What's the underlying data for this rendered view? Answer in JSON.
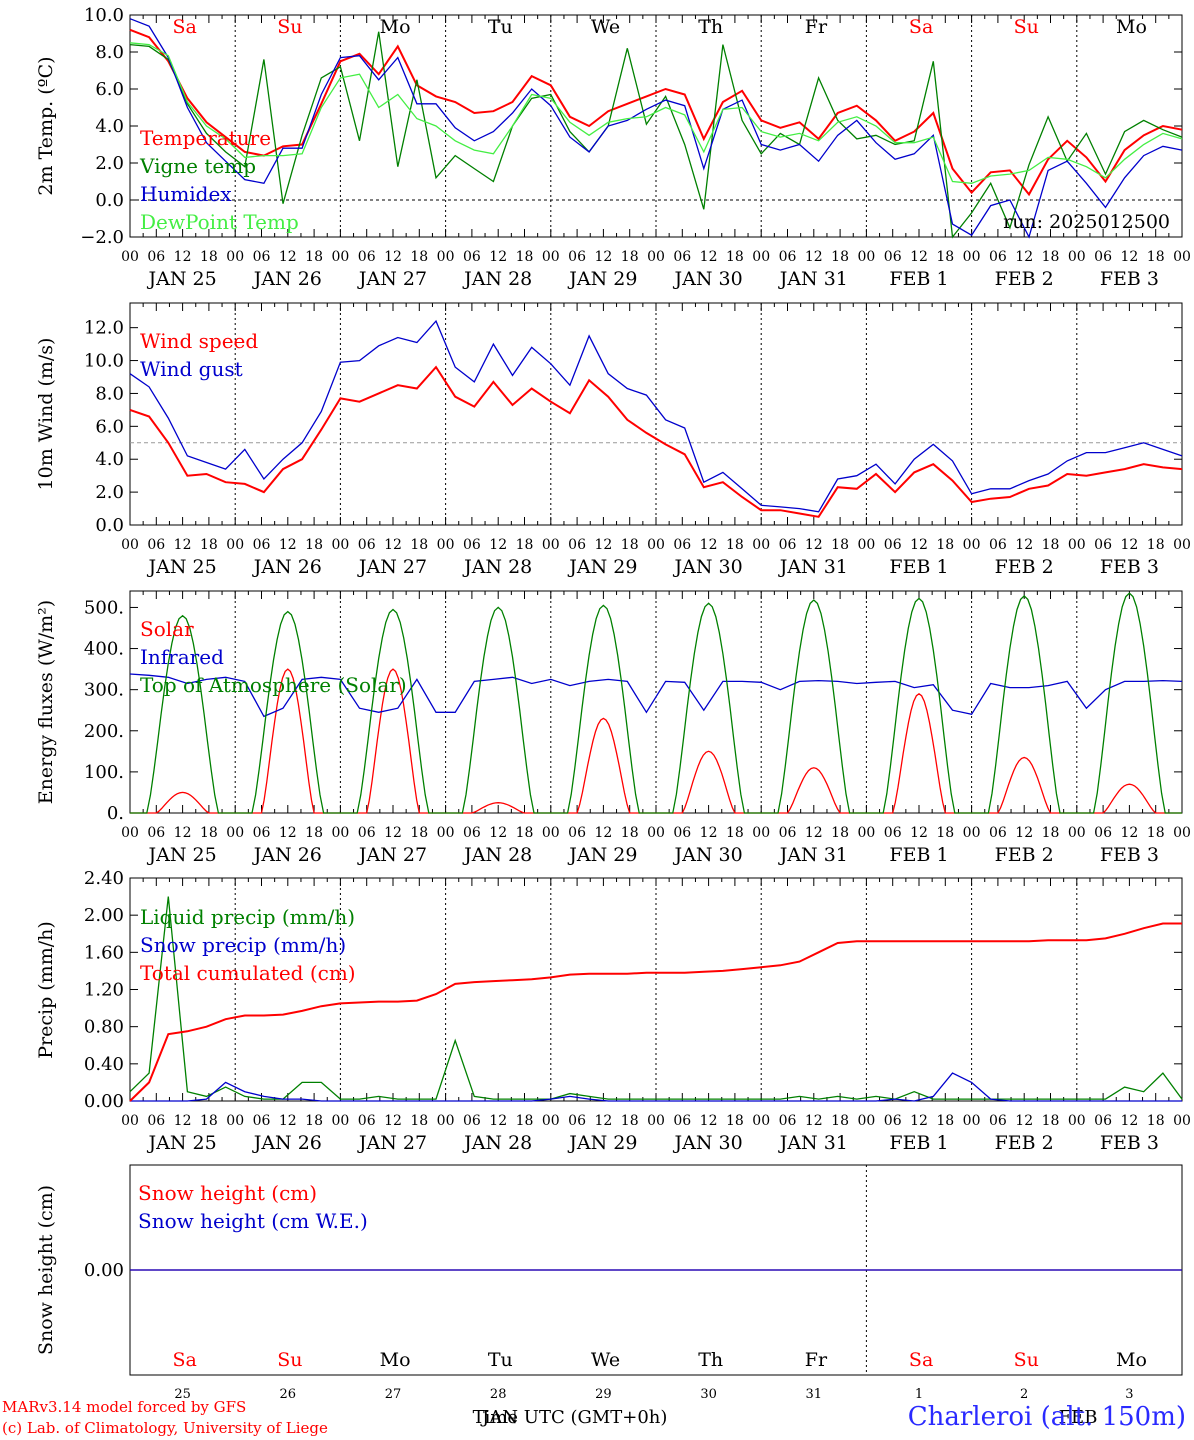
{
  "hour_labels": [
    "00",
    "06",
    "12",
    "18"
  ],
  "weekdays": [
    {
      "label": "Sa",
      "color": "#ff0000"
    },
    {
      "label": "Su",
      "color": "#ff0000"
    },
    {
      "label": "Mo",
      "color": "#000000"
    },
    {
      "label": "Tu",
      "color": "#000000"
    },
    {
      "label": "We",
      "color": "#000000"
    },
    {
      "label": "Th",
      "color": "#000000"
    },
    {
      "label": "Fr",
      "color": "#000000"
    },
    {
      "label": "Sa",
      "color": "#ff0000"
    },
    {
      "label": "Su",
      "color": "#ff0000"
    },
    {
      "label": "Mo",
      "color": "#000000"
    }
  ],
  "date_labels": [
    "JAN 25",
    "JAN 26",
    "JAN 27",
    "JAN 28",
    "JAN 29",
    "JAN 30",
    "JAN 31",
    "FEB  1",
    "FEB  2",
    "FEB  3"
  ],
  "bottom_day_numbers": [
    "25",
    "26",
    "27",
    "28",
    "29",
    "30",
    "31",
    "1",
    "2",
    "3"
  ],
  "footer": {
    "model": "MARv3.14 model forced by GFS",
    "copyright": "(c) Lab. of Climatology, University of Liege",
    "time_label": "Time UTC (GMT+0h)",
    "month_label_jan": "JAN",
    "month_label_feb": "FEB",
    "station": "Charleroi (alt. 150m)"
  },
  "chart_data": [
    {
      "type": "line",
      "ylabel": "2m Temp. (ºC)",
      "ylim": [
        -2,
        10
      ],
      "yticks": [
        "−2.0",
        "0.0",
        "2.0",
        "4.0",
        "6.0",
        "8.0",
        "10.0"
      ],
      "run_label": "run: 2025012500",
      "x_hours_step": 6,
      "series": [
        {
          "name": "Temperature",
          "color": "#ff0000",
          "values": [
            9.2,
            8.8,
            7.5,
            5.5,
            4.2,
            3.4,
            2.6,
            2.4,
            2.9,
            3.0,
            5.2,
            7.5,
            7.9,
            6.8,
            8.3,
            6.2,
            5.6,
            5.3,
            4.7,
            4.8,
            5.3,
            6.7,
            6.2,
            4.5,
            4.0,
            4.8,
            5.2,
            5.6,
            6.0,
            5.7,
            3.3,
            5.3,
            5.9,
            4.3,
            3.9,
            4.2,
            3.3,
            4.7,
            5.1,
            4.3,
            3.2,
            3.7,
            4.7,
            1.7,
            0.4,
            1.5,
            1.6,
            0.3,
            2.2,
            3.2,
            2.3,
            1.0,
            2.7,
            3.5,
            4.0,
            3.8
          ]
        },
        {
          "name": "Vigne temp",
          "color": "#008000",
          "values": [
            8.4,
            8.3,
            7.6,
            5.2,
            3.6,
            2.6,
            1.8,
            7.6,
            -0.2,
            3.5,
            6.6,
            7.2,
            3.2,
            9.1,
            1.8,
            6.5,
            1.2,
            2.4,
            1.7,
            1.0,
            4.0,
            5.5,
            5.7,
            3.7,
            2.6,
            4.0,
            8.2,
            4.1,
            5.6,
            3.0,
            -0.5,
            8.4,
            4.3,
            2.5,
            3.6,
            3.0,
            6.6,
            4.3,
            3.3,
            3.5,
            3.0,
            3.2,
            7.5,
            -2.0,
            -0.7,
            0.9,
            -1.5,
            1.9,
            4.5,
            2.1,
            3.6,
            1.4,
            3.7,
            4.3,
            3.8,
            3.4
          ]
        },
        {
          "name": "Humidex",
          "color": "#0000cc",
          "values": [
            9.8,
            9.4,
            7.7,
            5.0,
            3.1,
            2.1,
            1.1,
            0.9,
            2.8,
            2.8,
            5.7,
            7.7,
            7.8,
            6.5,
            7.7,
            5.2,
            5.2,
            3.9,
            3.2,
            3.7,
            4.7,
            6.0,
            5.1,
            3.4,
            2.6,
            4.0,
            4.3,
            4.9,
            5.4,
            5.1,
            1.7,
            4.9,
            5.4,
            3.0,
            2.7,
            3.0,
            2.1,
            3.5,
            4.3,
            3.1,
            2.2,
            2.5,
            3.5,
            -1.3,
            -1.9,
            -0.3,
            0.0,
            -2.0,
            1.6,
            2.1,
            0.9,
            -0.4,
            1.2,
            2.4,
            2.9,
            2.7
          ]
        },
        {
          "name": "DewPoint Temp",
          "color": "#44ee44",
          "values": [
            8.5,
            8.4,
            7.8,
            5.3,
            4.0,
            3.3,
            2.3,
            2.4,
            2.4,
            2.5,
            5.0,
            6.6,
            6.8,
            5.0,
            5.7,
            4.4,
            4.0,
            3.2,
            2.7,
            2.5,
            4.0,
            5.7,
            5.5,
            4.2,
            3.5,
            4.2,
            4.4,
            4.5,
            5.0,
            4.6,
            2.6,
            4.9,
            5.0,
            3.7,
            3.4,
            3.6,
            3.2,
            4.2,
            4.5,
            4.0,
            3.1,
            3.1,
            3.4,
            1.0,
            0.9,
            1.3,
            1.4,
            1.6,
            2.3,
            2.2,
            1.8,
            1.2,
            2.2,
            3.0,
            3.6,
            3.3
          ]
        }
      ]
    },
    {
      "type": "line",
      "ylabel": "10m Wind (m/s)",
      "ylim": [
        0,
        13.5
      ],
      "yticks": [
        "0.0",
        "2.0",
        "4.0",
        "6.0",
        "8.0",
        "10.0",
        "12.0"
      ],
      "threshold": 5,
      "x_hours_step": 6,
      "series": [
        {
          "name": "Wind speed",
          "color": "#ff0000",
          "values": [
            7.0,
            6.6,
            5.0,
            3.0,
            3.1,
            2.6,
            2.5,
            2.0,
            3.4,
            4.0,
            5.8,
            7.7,
            7.5,
            8.0,
            8.5,
            8.3,
            9.6,
            7.8,
            7.2,
            8.7,
            7.3,
            8.3,
            7.5,
            6.8,
            8.8,
            7.8,
            6.4,
            5.6,
            4.9,
            4.3,
            2.3,
            2.6,
            1.7,
            0.9,
            0.9,
            0.7,
            0.5,
            2.3,
            2.2,
            3.1,
            2.0,
            3.2,
            3.7,
            2.7,
            1.4,
            1.6,
            1.7,
            2.2,
            2.4,
            3.1,
            3.0,
            3.2,
            3.4,
            3.7,
            3.5,
            3.4
          ]
        },
        {
          "name": "Wind gust",
          "color": "#0000cc",
          "values": [
            9.2,
            8.4,
            6.5,
            4.2,
            3.8,
            3.4,
            4.6,
            2.8,
            4.0,
            5.0,
            6.9,
            9.9,
            10.0,
            10.9,
            11.4,
            11.1,
            12.4,
            9.6,
            8.7,
            11.0,
            9.1,
            10.8,
            9.8,
            8.5,
            11.5,
            9.2,
            8.3,
            7.9,
            6.4,
            5.9,
            2.6,
            3.2,
            2.2,
            1.2,
            1.1,
            1.0,
            0.8,
            2.8,
            3.0,
            3.7,
            2.5,
            4.0,
            4.9,
            3.9,
            1.9,
            2.2,
            2.2,
            2.7,
            3.1,
            3.9,
            4.4,
            4.4,
            4.7,
            5.0,
            4.6,
            4.2
          ]
        }
      ]
    },
    {
      "type": "line",
      "ylabel": "Energy fluxes (W/m²)",
      "ylim": [
        0,
        540
      ],
      "yticks": [
        "0.",
        "100.",
        "200.",
        "300.",
        "400.",
        "500."
      ],
      "x_hours_step": 6,
      "series": [
        {
          "name": "Solar",
          "color": "#ff0000",
          "peaks": [
            50,
            350,
            350,
            25,
            230,
            150,
            110,
            290,
            135,
            70
          ]
        },
        {
          "name": "Infrared",
          "color": "#0000cc",
          "values": [
            338,
            335,
            330,
            315,
            325,
            330,
            320,
            235,
            255,
            325,
            330,
            325,
            255,
            245,
            255,
            325,
            245,
            245,
            320,
            325,
            330,
            315,
            325,
            310,
            320,
            325,
            320,
            245,
            320,
            318,
            250,
            320,
            320,
            318,
            300,
            320,
            322,
            320,
            315,
            318,
            320,
            305,
            312,
            250,
            240,
            315,
            305,
            305,
            310,
            320,
            255,
            300,
            320,
            320,
            322,
            320
          ]
        },
        {
          "name": "Top of Atmosphere (Solar)",
          "color": "#008000",
          "peaks": [
            480,
            490,
            495,
            500,
            505,
            510,
            518,
            522,
            528,
            535
          ]
        }
      ]
    },
    {
      "type": "line",
      "ylabel": "Precip (mm/h)",
      "ylim": [
        0,
        2.4
      ],
      "yticks": [
        "0.00",
        "0.40",
        "0.80",
        "1.20",
        "1.60",
        "2.00",
        "2.40"
      ],
      "x_hours_step": 6,
      "series": [
        {
          "name": "Liquid precip (mm/h)",
          "color": "#008000",
          "values": [
            0.1,
            0.3,
            2.2,
            0.1,
            0.05,
            0.15,
            0.05,
            0.02,
            0.02,
            0.2,
            0.2,
            0.02,
            0.02,
            0.05,
            0.02,
            0.02,
            0.02,
            0.65,
            0.05,
            0.02,
            0.02,
            0.02,
            0.02,
            0.08,
            0.05,
            0.02,
            0.02,
            0.02,
            0.02,
            0.02,
            0.02,
            0.02,
            0.02,
            0.02,
            0.02,
            0.05,
            0.02,
            0.05,
            0.02,
            0.05,
            0.02,
            0.1,
            0.02,
            0.02,
            0.02,
            0.02,
            0.02,
            0.02,
            0.02,
            0.02,
            0.02,
            0.02,
            0.15,
            0.1,
            0.3,
            0.02
          ]
        },
        {
          "name": "Snow precip (mm/h)",
          "color": "#0000cc",
          "values": [
            0,
            0,
            0,
            0,
            0.02,
            0.2,
            0.1,
            0.05,
            0.02,
            0.02,
            0,
            0,
            0,
            0,
            0,
            0,
            0,
            0,
            0,
            0,
            0,
            0,
            0.02,
            0.05,
            0.02,
            0,
            0,
            0,
            0,
            0,
            0,
            0,
            0,
            0,
            0,
            0,
            0,
            0,
            0,
            0,
            0.02,
            0,
            0.05,
            0.3,
            0.2,
            0.02,
            0,
            0,
            0,
            0,
            0,
            0,
            0,
            0,
            0,
            0
          ]
        },
        {
          "name": "Total cumulated (cm)",
          "color": "#ff0000",
          "values": [
            0.0,
            0.2,
            0.72,
            0.75,
            0.8,
            0.88,
            0.92,
            0.92,
            0.93,
            0.97,
            1.02,
            1.05,
            1.06,
            1.07,
            1.07,
            1.08,
            1.15,
            1.26,
            1.28,
            1.29,
            1.3,
            1.31,
            1.33,
            1.36,
            1.37,
            1.37,
            1.37,
            1.38,
            1.38,
            1.38,
            1.39,
            1.4,
            1.42,
            1.44,
            1.46,
            1.5,
            1.6,
            1.7,
            1.72,
            1.72,
            1.72,
            1.72,
            1.72,
            1.72,
            1.72,
            1.72,
            1.72,
            1.72,
            1.73,
            1.73,
            1.73,
            1.75,
            1.8,
            1.86,
            1.91,
            1.91
          ]
        }
      ]
    },
    {
      "type": "line",
      "ylabel": "Snow height (cm)",
      "yticks": [
        "0.00"
      ],
      "x_hours_step": 6,
      "series": [
        {
          "name": "Snow height (cm)",
          "color": "#ff0000",
          "values": [
            0,
            0
          ]
        },
        {
          "name": "Snow height (cm W.E.)",
          "color": "#0000cc",
          "values": [
            0,
            0
          ]
        }
      ]
    }
  ]
}
